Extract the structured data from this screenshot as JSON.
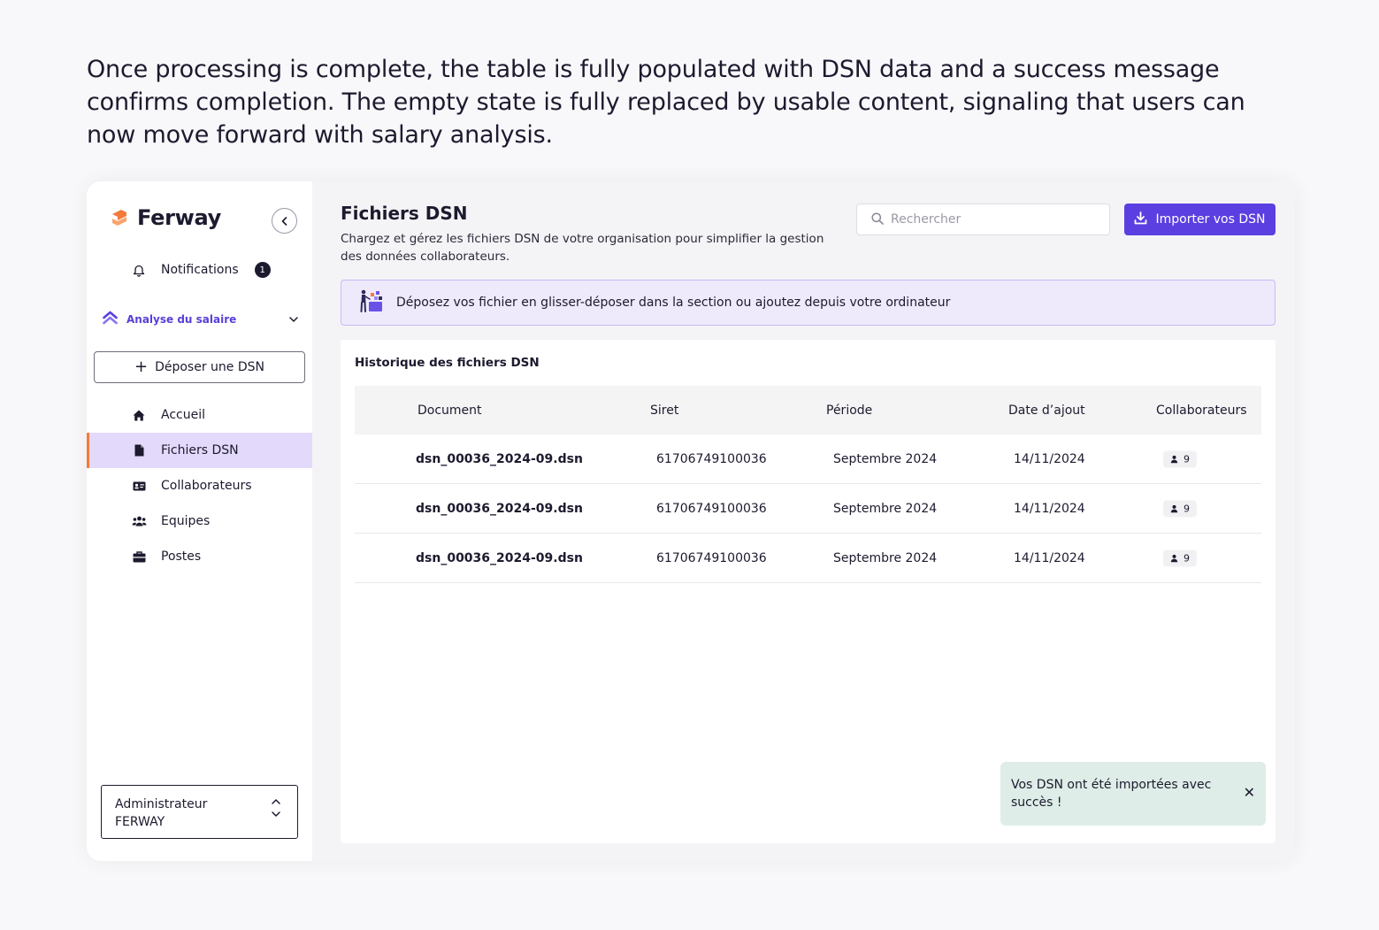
{
  "intro": "Once processing is complete, the table is fully populated with DSN data and a success message confirms completion. The empty state is fully replaced by usable content, signaling that users can now move forward with salary analysis.",
  "brand": {
    "name": "Ferway",
    "accent": "#f47a3a",
    "primary": "#5b3fe0"
  },
  "sidebar": {
    "notifications": {
      "label": "Notifications",
      "count": "1"
    },
    "section": {
      "label": "Analyse du salaire"
    },
    "deposit_button": "Déposer une DSN",
    "items": [
      {
        "label": "Accueil",
        "icon": "home-icon",
        "active": false
      },
      {
        "label": "Fichiers DSN",
        "icon": "file-icon",
        "active": true
      },
      {
        "label": "Collaborateurs",
        "icon": "id-card-icon",
        "active": false
      },
      {
        "label": "Equipes",
        "icon": "users-icon",
        "active": false
      },
      {
        "label": "Postes",
        "icon": "briefcase-icon",
        "active": false
      }
    ],
    "account": {
      "line1": "Administrateur",
      "line2": "FERWAY"
    }
  },
  "main": {
    "title": "Fichiers DSN",
    "description": "Chargez et gérez les fichiers DSN de votre organisation pour simplifier la gestion des données collaborateurs.",
    "search": {
      "placeholder": "Rechercher"
    },
    "import_button": "Importer vos DSN",
    "dropzone": "Déposez vos fichier en glisser-déposer dans la section ou ajoutez depuis votre ordinateur",
    "history": {
      "title": "Historique des fichiers DSN",
      "columns": [
        "Document",
        "Siret",
        "Période",
        "Date d’ajout",
        "Collaborateurs"
      ],
      "rows": [
        {
          "document": "dsn_00036_2024-09.dsn",
          "siret": "61706749100036",
          "periode": "Septembre 2024",
          "date": "14/11/2024",
          "collaborateurs": "9"
        },
        {
          "document": "dsn_00036_2024-09.dsn",
          "siret": "61706749100036",
          "periode": "Septembre 2024",
          "date": "14/11/2024",
          "collaborateurs": "9"
        },
        {
          "document": "dsn_00036_2024-09.dsn",
          "siret": "61706749100036",
          "periode": "Septembre 2024",
          "date": "14/11/2024",
          "collaborateurs": "9"
        }
      ]
    },
    "toast": {
      "message": "Vos DSN ont été importées avec succès !",
      "close": "✕"
    }
  }
}
